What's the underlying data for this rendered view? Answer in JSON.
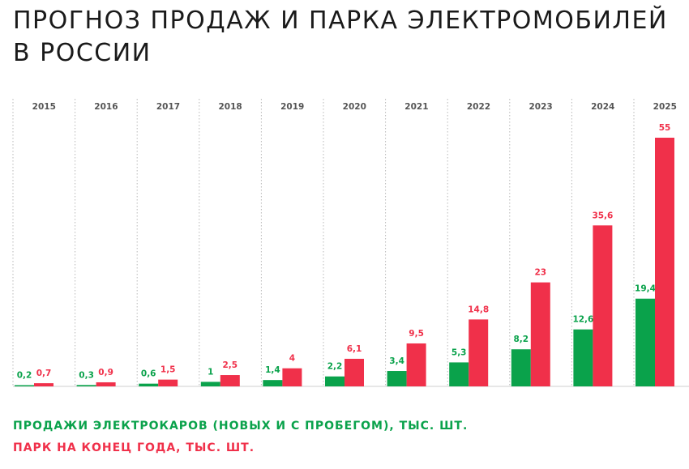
{
  "title": {
    "line1": "ПРОГНОЗ ПРОДАЖ И ПАРКА ЭЛЕКТРОМОБИЛЕЙ",
    "line2": "В РОССИИ"
  },
  "colors": {
    "sales": "#0aa24b",
    "fleet": "#f0304a",
    "year_label": "#555555",
    "grid": "#b8b8b8",
    "baseline": "#cfcfcf"
  },
  "legend": {
    "sales": "ПРОДАЖИ ЭЛЕКТРОКАРОВ (НОВЫХ И С ПРОБЕГОМ), ТЫС. ШТ.",
    "fleet": "ПАРК НА КОНЕЦ ГОДА, ТЫС. ШТ."
  },
  "chart_data": {
    "type": "bar",
    "categories": [
      "2015",
      "2016",
      "2017",
      "2018",
      "2019",
      "2020",
      "2021",
      "2022",
      "2023",
      "2024",
      "2025"
    ],
    "series": [
      {
        "name": "ПРОДАЖИ ЭЛЕКТРОКАРОВ (НОВЫХ И С ПРОБЕГОМ), ТЫС. ШТ.",
        "color": "#0aa24b",
        "values": [
          0.2,
          0.3,
          0.6,
          1,
          1.4,
          2.2,
          3.4,
          5.3,
          8.2,
          12.6,
          19.4
        ],
        "labels": [
          "0,2",
          "0,3",
          "0,6",
          "1",
          "1,4",
          "2,2",
          "3,4",
          "5,3",
          "8,2",
          "12,6",
          "19,4"
        ]
      },
      {
        "name": "ПАРК НА КОНЕЦ ГОДА, ТЫС. ШТ.",
        "color": "#f0304a",
        "values": [
          0.7,
          0.9,
          1.5,
          2.5,
          4,
          6.1,
          9.5,
          14.8,
          23,
          35.6,
          55
        ],
        "labels": [
          "0,7",
          "0,9",
          "1,5",
          "2,5",
          "4",
          "6,1",
          "9,5",
          "14,8",
          "23",
          "35,6",
          "55"
        ]
      }
    ],
    "ylim": [
      0,
      55
    ],
    "grid": "vertical dotted lines between year columns",
    "legend_position": "bottom-left"
  }
}
